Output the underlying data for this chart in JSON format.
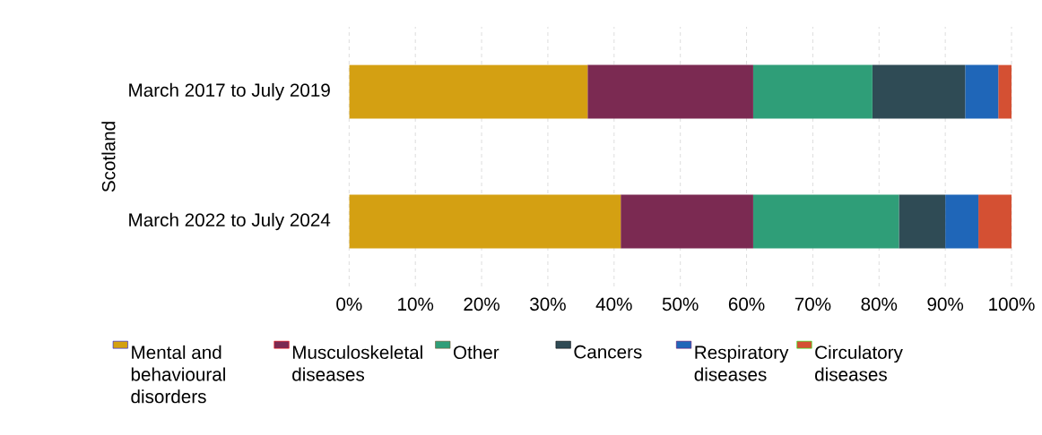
{
  "chart_data": {
    "type": "bar",
    "orientation": "horizontal",
    "stacked": true,
    "ylabel": "Scotland",
    "categories": [
      "March 2017 to July 2019",
      "March 2022 to July 2024"
    ],
    "series": [
      {
        "name": "Mental and behavioural disorders",
        "color": "#d4a012",
        "values": [
          36,
          41
        ]
      },
      {
        "name": "Musculoskeletal diseases",
        "color": "#7b2a52",
        "values": [
          25,
          20
        ]
      },
      {
        "name": "Other",
        "color": "#2f9e78",
        "values": [
          18,
          22
        ]
      },
      {
        "name": "Cancers",
        "color": "#2f4b55",
        "values": [
          14,
          7
        ]
      },
      {
        "name": "Respiratory diseases",
        "color": "#1f66b8",
        "values": [
          5,
          5
        ]
      },
      {
        "name": "Circulatory diseases",
        "color": "#d45033",
        "values": [
          2,
          5
        ]
      }
    ],
    "xlim": [
      0,
      100
    ],
    "xticks": [
      {
        "value": 0,
        "label": "0%"
      },
      {
        "value": 10,
        "label": "10%"
      },
      {
        "value": 20,
        "label": "20%"
      },
      {
        "value": 30,
        "label": "30%"
      },
      {
        "value": 40,
        "label": "40%"
      },
      {
        "value": 50,
        "label": "50%"
      },
      {
        "value": 60,
        "label": "60%"
      },
      {
        "value": 70,
        "label": "70%"
      },
      {
        "value": 80,
        "label": "80%"
      },
      {
        "value": 90,
        "label": "90%"
      },
      {
        "value": 100,
        "label": "100%"
      }
    ],
    "grid": "x",
    "legend": "bottom"
  }
}
